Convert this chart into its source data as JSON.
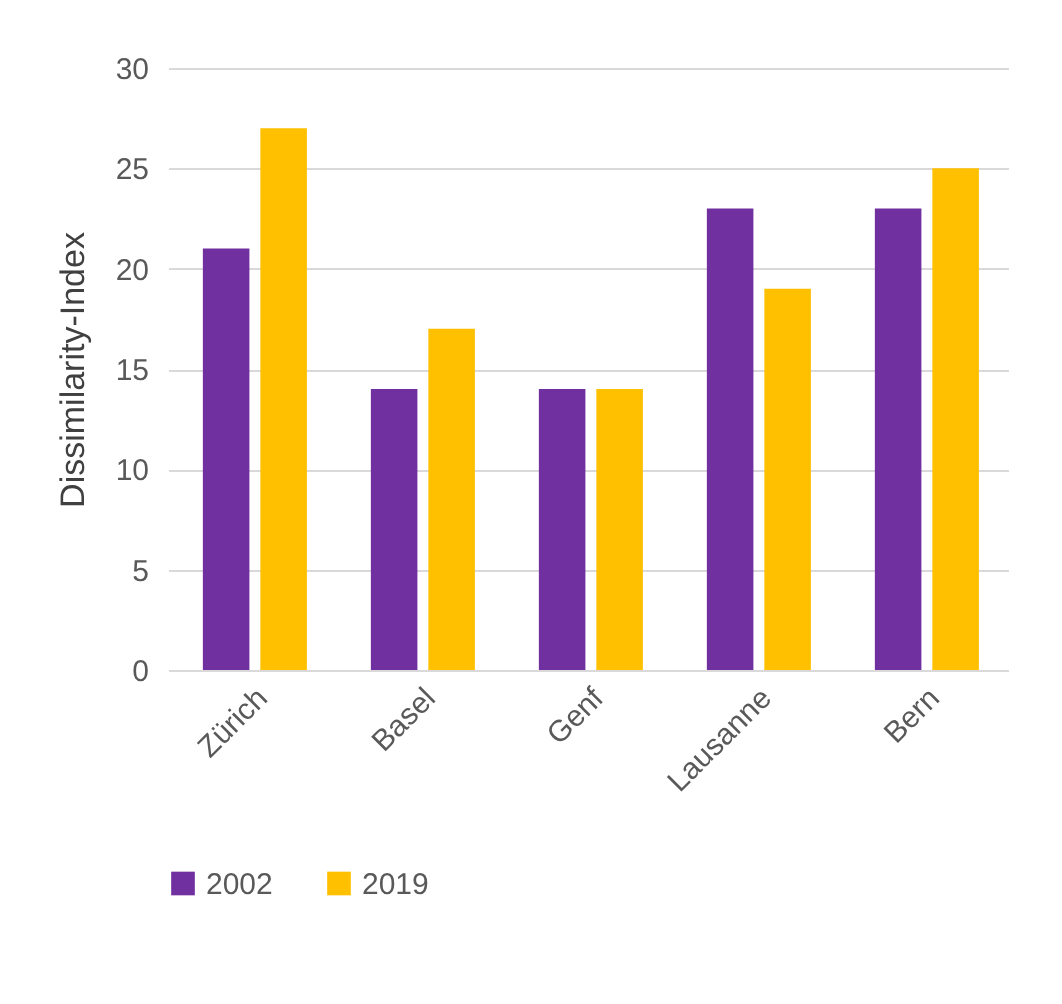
{
  "chart_data": {
    "type": "bar",
    "ylabel": "Dissimilarity-Index",
    "categories": [
      "Zürich",
      "Basel",
      "Genf",
      "Lausanne",
      "Bern"
    ],
    "series": [
      {
        "name": "2002",
        "color": "#7030a0",
        "values": [
          21,
          14,
          14,
          23,
          23
        ]
      },
      {
        "name": "2019",
        "color": "#ffc000",
        "values": [
          27,
          17,
          14,
          19,
          25
        ]
      }
    ],
    "ylim": [
      0,
      30
    ],
    "yticks": [
      0,
      5,
      10,
      15,
      20,
      25,
      30
    ],
    "grid": "y",
    "legend": "bottom"
  }
}
